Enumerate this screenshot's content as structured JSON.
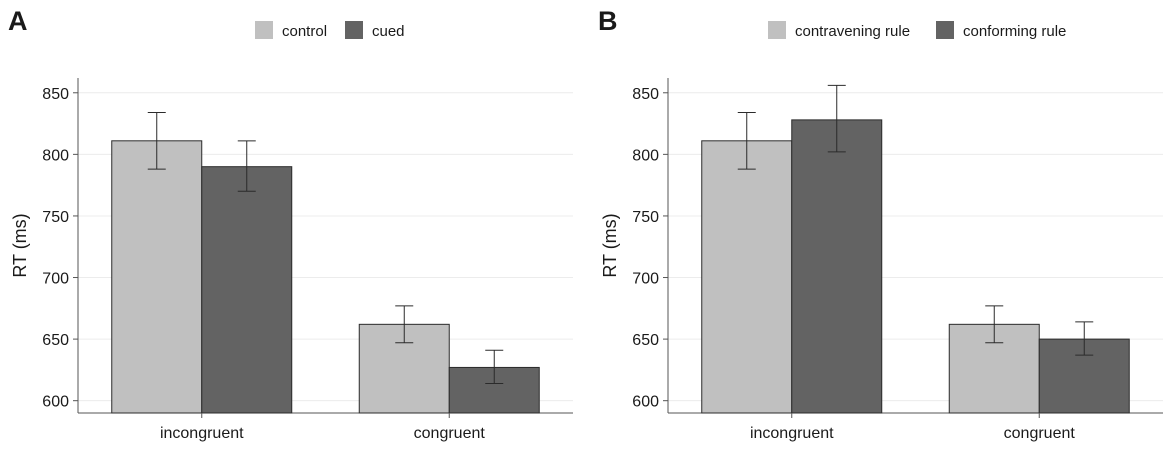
{
  "chart_data": [
    {
      "type": "bar",
      "panel": "A",
      "categories": [
        "incongruent",
        "congruent"
      ],
      "series": [
        {
          "name": "control",
          "color": "#c0c0c0",
          "values": [
            811,
            662
          ],
          "err_low": [
            788,
            647
          ],
          "err_high": [
            834,
            677
          ]
        },
        {
          "name": "cued",
          "color": "#636363",
          "values": [
            790,
            627
          ],
          "err_low": [
            770,
            614
          ],
          "err_high": [
            811,
            641
          ]
        }
      ],
      "ylabel": "RT (ms)",
      "yticks": [
        600,
        650,
        700,
        750,
        800,
        850
      ],
      "ylim": [
        590,
        862
      ],
      "grid": true,
      "legend": "top-center"
    },
    {
      "type": "bar",
      "panel": "B",
      "categories": [
        "incongruent",
        "congruent"
      ],
      "series": [
        {
          "name": "contravening rule",
          "color": "#c0c0c0",
          "values": [
            811,
            662
          ],
          "err_low": [
            788,
            647
          ],
          "err_high": [
            834,
            677
          ]
        },
        {
          "name": "conforming rule",
          "color": "#636363",
          "values": [
            828,
            650
          ],
          "err_low": [
            802,
            637
          ],
          "err_high": [
            856,
            664
          ]
        }
      ],
      "ylabel": "RT (ms)",
      "yticks": [
        600,
        650,
        700,
        750,
        800,
        850
      ],
      "ylim": [
        590,
        862
      ],
      "grid": true,
      "legend": "top-center"
    }
  ]
}
